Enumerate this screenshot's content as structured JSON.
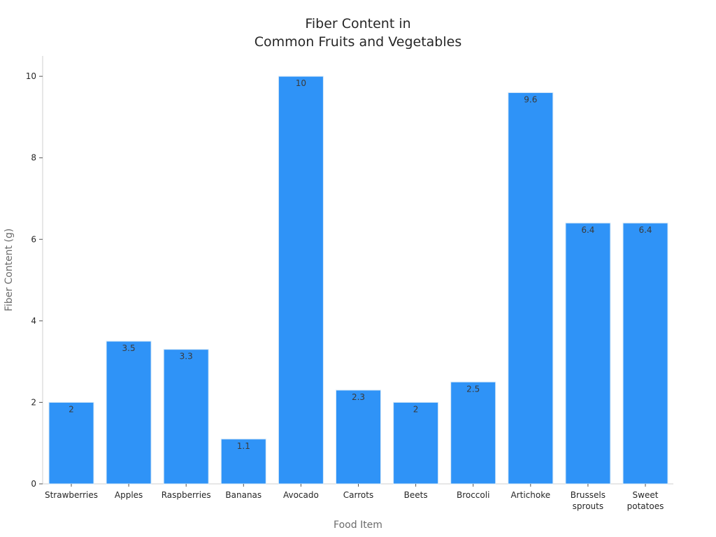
{
  "chart_data": {
    "type": "bar",
    "title_lines": [
      "Fiber Content in",
      "Common Fruits and Vegetables"
    ],
    "xlabel": "Food Item",
    "ylabel": "Fiber Content (g)",
    "categories": [
      [
        "Strawberries"
      ],
      [
        "Apples"
      ],
      [
        "Raspberries"
      ],
      [
        "Bananas"
      ],
      [
        "Avocado"
      ],
      [
        "Carrots"
      ],
      [
        "Beets"
      ],
      [
        "Broccoli"
      ],
      [
        "Artichoke"
      ],
      [
        "Brussels",
        "sprouts"
      ],
      [
        "Sweet",
        "potatoes"
      ]
    ],
    "values": [
      2,
      3.5,
      3.3,
      1.1,
      10,
      2.3,
      2,
      2.5,
      9.6,
      6.4,
      6.4
    ],
    "data_labels": [
      "2",
      "3.5",
      "3.3",
      "1.1",
      "10",
      "2.3",
      "2",
      "2.5",
      "9.6",
      "6.4",
      "6.4"
    ],
    "yticks": [
      0,
      2,
      4,
      6,
      8,
      10
    ],
    "ylim": [
      0,
      10.5
    ],
    "grid": false,
    "bar_color": "#2f93f7",
    "bar_edge_color": "#d6e8f7"
  }
}
